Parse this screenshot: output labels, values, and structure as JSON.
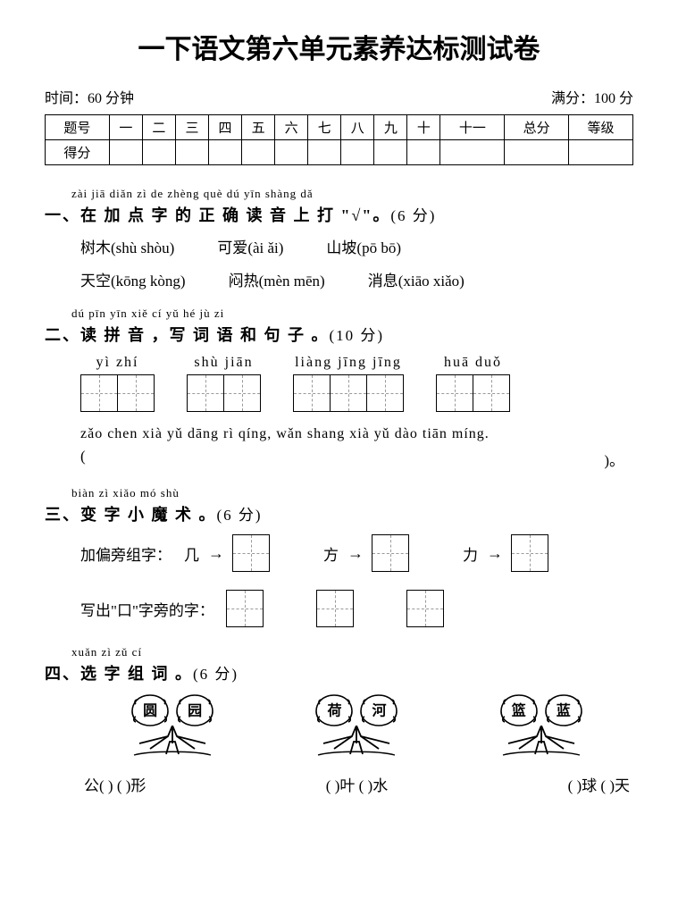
{
  "title": "一下语文第六单元素养达标测试卷",
  "info": {
    "time_label": "时间：60 分钟",
    "score_label": "满分：100 分"
  },
  "score_table": {
    "row1_label": "题号",
    "cols": [
      "一",
      "二",
      "三",
      "四",
      "五",
      "六",
      "七",
      "八",
      "九",
      "十",
      "十一",
      "总分",
      "等级"
    ],
    "row2_label": "得分"
  },
  "s1": {
    "pinyin": "zài jiā diǎn zì  de  zhèng què dú yīn shàng dǎ",
    "title": "一、在 加 点 字 的  正  确 读 音  上  打 \"√\"。",
    "pts": "(6 分)",
    "row1": [
      {
        "word": "树木",
        "opts": "(shù   shòu)"
      },
      {
        "word": "可爱",
        "opts": "(ài   ǎi)"
      },
      {
        "word": "山坡",
        "opts": "(pō   bō)"
      }
    ],
    "row2": [
      {
        "word": "天空",
        "opts": "(kōng   kòng)"
      },
      {
        "word": "闷热",
        "opts": "(mèn   mēn)"
      },
      {
        "word": "消息",
        "opts": "(xiāo   xiǎo)"
      }
    ]
  },
  "s2": {
    "pinyin": "dú pīn yīn     xiě cí yǔ hé jù  zi",
    "title": "二、读 拼 音 ，写 词 语 和 句 子 。",
    "pts": "(10 分)",
    "groups": [
      {
        "pinyin": "yì   zhí",
        "cells": 2
      },
      {
        "pinyin": "shù   jiān",
        "cells": 2
      },
      {
        "pinyin": "liàng jīng jīng",
        "cells": 3
      },
      {
        "pinyin": "huā   duǒ",
        "cells": 2
      }
    ],
    "sentence": "zǎo chen xià yǔ dāng rì qíng, wǎn shang xià yǔ dào tiān míng.",
    "paren_l": "(",
    "paren_r": ")。"
  },
  "s3": {
    "pinyin": "biàn zì  xiǎo mó shù",
    "title": "三、变 字 小 魔 术 。",
    "pts": "(6 分)",
    "line1_label": "加偏旁组字：",
    "items1": [
      "几",
      "方",
      "力"
    ],
    "line2_label": "写出\"口\"字旁的字："
  },
  "s4": {
    "pinyin": "xuǎn zì  zǔ  cí",
    "title": "四、选 字 组 词 。",
    "pts": "(6 分)",
    "trees": [
      {
        "a": "圆",
        "b": "园"
      },
      {
        "a": "荷",
        "b": "河"
      },
      {
        "a": "篮",
        "b": "蓝"
      }
    ],
    "fills": [
      "公(     )  (     )形",
      "(     )叶  (     )水",
      "(     )球  (     )天"
    ]
  },
  "colors": {
    "text": "#000000",
    "bg": "#ffffff",
    "dash": "#999999"
  }
}
